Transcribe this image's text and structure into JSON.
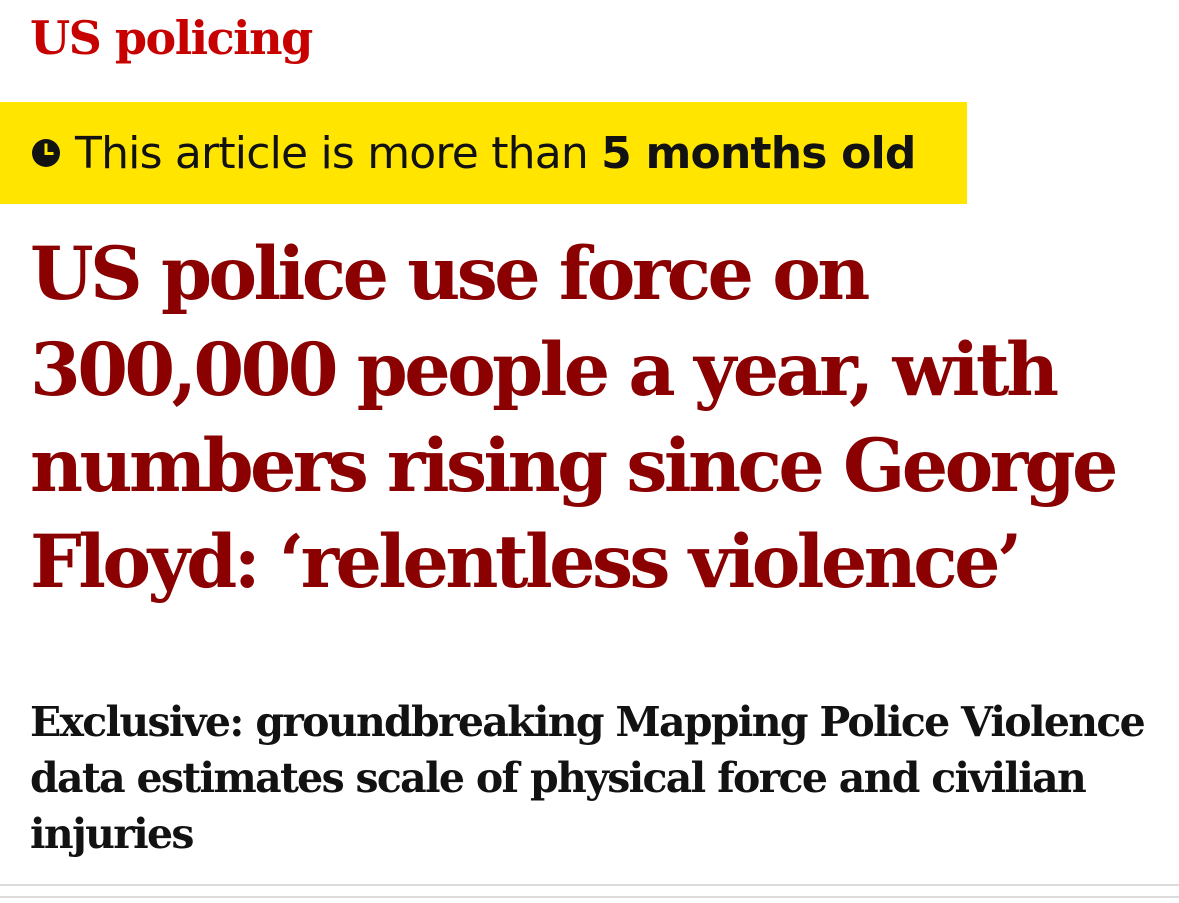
{
  "section": {
    "label": "US policing"
  },
  "age_warning": {
    "icon": "clock-icon",
    "prefix": "This article is more than ",
    "emphasis": "5 months old"
  },
  "article": {
    "headline": "US police use force on 300,000 people a year, with numbers rising since George Floyd: ‘relentless violence’",
    "standfirst": "Exclusive: groundbreaking Mapping Police Violence data estimates scale of physical force and civilian injuries"
  },
  "colors": {
    "section_red": "#c70000",
    "headline_red": "#8b0000",
    "banner_yellow": "#ffe500",
    "text_dark": "#121212"
  }
}
